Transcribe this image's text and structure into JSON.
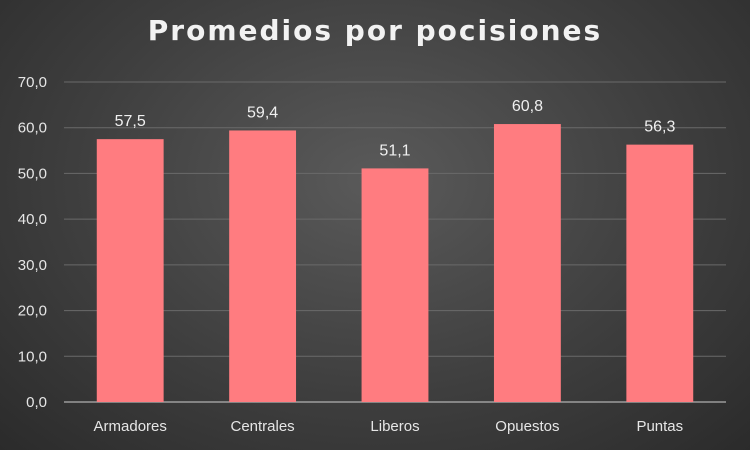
{
  "chart_data": {
    "type": "bar",
    "title": "Promedios por pocisiones",
    "xlabel": "",
    "ylabel": "",
    "categories": [
      "Armadores",
      "Centrales",
      "Liberos",
      "Opuestos",
      "Puntas"
    ],
    "values": [
      57.5,
      59.4,
      51.1,
      60.8,
      56.3
    ],
    "value_labels": [
      "57,5",
      "59,4",
      "51,1",
      "60,8",
      "56,3"
    ],
    "ylim": [
      0,
      70
    ],
    "yticks": [
      0,
      10,
      20,
      30,
      40,
      50,
      60,
      70
    ],
    "ytick_labels": [
      "0,0",
      "10,0",
      "20,0",
      "30,0",
      "40,0",
      "50,0",
      "60,0",
      "70,0"
    ],
    "grid": true,
    "legend": "none",
    "bar_color": "#ff7c80"
  }
}
